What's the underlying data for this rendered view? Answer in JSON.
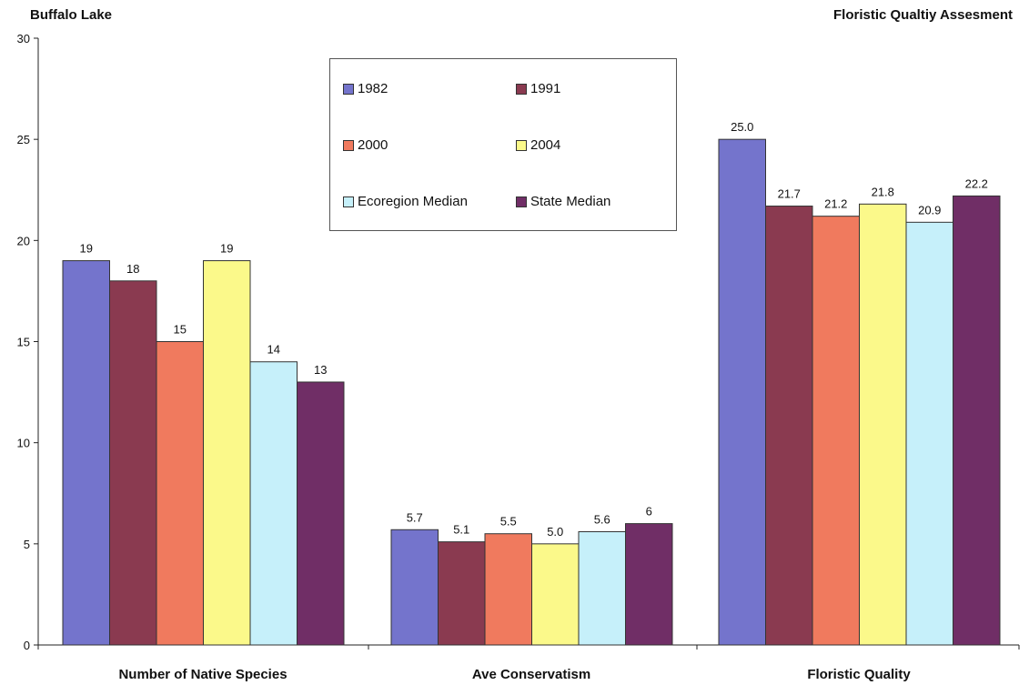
{
  "header": {
    "title_left": "Buffalo Lake",
    "title_right": "Floristic Qualtiy Assesment"
  },
  "colors": {
    "1982": "#7474cc",
    "1991": "#8a3a50",
    "2000": "#f07a5e",
    "2004": "#fbf98a",
    "Ecoregion Median": "#c6f0fa",
    "State Median": "#702e66"
  },
  "chart_data": {
    "type": "bar",
    "categories": [
      "Number of Native Species",
      "Ave Conservatism",
      "Floristic Quality"
    ],
    "series": [
      {
        "name": "1982",
        "values": [
          19,
          5.7,
          25.0
        ],
        "labels": [
          "19",
          "5.7",
          "25.0"
        ]
      },
      {
        "name": "1991",
        "values": [
          18,
          5.1,
          21.7
        ],
        "labels": [
          "18",
          "5.1",
          "21.7"
        ]
      },
      {
        "name": "2000",
        "values": [
          15,
          5.5,
          21.2
        ],
        "labels": [
          "15",
          "5.5",
          "21.2"
        ]
      },
      {
        "name": "2004",
        "values": [
          19,
          5.0,
          21.8
        ],
        "labels": [
          "19",
          "5.0",
          "21.8"
        ]
      },
      {
        "name": "Ecoregion Median",
        "values": [
          14,
          5.6,
          20.9
        ],
        "labels": [
          "14",
          "5.6",
          "20.9"
        ]
      },
      {
        "name": "State Median",
        "values": [
          13,
          6,
          22.2
        ],
        "labels": [
          "13",
          "6",
          "22.2"
        ]
      }
    ],
    "ylim": [
      0,
      30
    ],
    "yticks": [
      0,
      5,
      10,
      15,
      20,
      25,
      30
    ],
    "grid": false,
    "legend_position": "top-center"
  }
}
